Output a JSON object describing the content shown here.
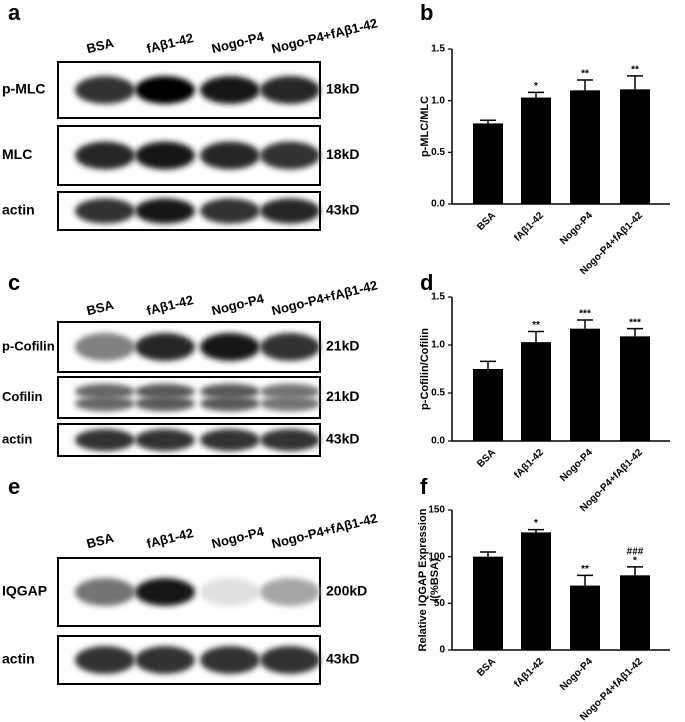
{
  "chart_data": [
    {
      "type": "bar",
      "panel": "b",
      "ylabel": [
        "p-MLC/MLC"
      ],
      "categories": [
        "BSA",
        "fAβ1-42",
        "Nogo-P4",
        "Nogo-P4+fAβ1-42"
      ],
      "values": [
        0.78,
        1.03,
        1.1,
        1.11
      ],
      "errors": [
        0.03,
        0.05,
        0.1,
        0.13
      ],
      "annotations": [
        null,
        [
          "*"
        ],
        [
          "**"
        ],
        [
          "**"
        ]
      ],
      "color": "#000000",
      "ylim": [
        0,
        1.5
      ],
      "yticks": [
        {
          "value": 0,
          "label": "0.0"
        },
        0.5,
        {
          "value": 1,
          "label": "1.0"
        },
        1.5
      ]
    },
    {
      "type": "bar",
      "panel": "d",
      "ylabel": [
        "p-Cofilin/Cofilin"
      ],
      "categories": [
        "BSA",
        "fAβ1-42",
        "Nogo-P4",
        "Nogo-P4+fAβ1-42"
      ],
      "values": [
        0.75,
        1.03,
        1.17,
        1.09
      ],
      "errors": [
        0.08,
        0.11,
        0.09,
        0.08
      ],
      "annotations": [
        null,
        [
          "**"
        ],
        [
          "***"
        ],
        [
          "***"
        ]
      ],
      "color": "#000000",
      "ylim": [
        0,
        1.5
      ],
      "yticks": [
        {
          "value": 0,
          "label": "0.0"
        },
        0.5,
        {
          "value": 1,
          "label": "1.0"
        },
        1.5
      ]
    },
    {
      "type": "bar",
      "panel": "f",
      "ylabel": [
        "Relative IQGAP Expression",
        "/(%BSA)"
      ],
      "categories": [
        "BSA",
        "fAβ1-42",
        "Nogo-P4",
        "Nogo-P4+fAβ1-42"
      ],
      "values": [
        100,
        126,
        69,
        80
      ],
      "errors": [
        5,
        3,
        11,
        9
      ],
      "annotations": [
        null,
        [
          "*"
        ],
        [
          "**"
        ],
        [
          "###",
          "*"
        ]
      ],
      "color": "#000000",
      "ylim": [
        0,
        150
      ],
      "yticks": [
        0,
        50,
        100,
        150
      ]
    }
  ],
  "blots": [
    {
      "panel": "a",
      "lanes": [
        "BSA",
        "fAβ1-42",
        "Nogo-P4",
        "Nogo-P4+fAβ1-42"
      ],
      "rows": [
        {
          "label": "p-MLC",
          "size": "18kD"
        },
        {
          "label": "MLC",
          "size": "18kD"
        },
        {
          "label": "actin",
          "size": "43kD"
        }
      ]
    },
    {
      "panel": "c",
      "lanes": [
        "BSA",
        "fAβ1-42",
        "Nogo-P4",
        "Nogo-P4+fAβ1-42"
      ],
      "rows": [
        {
          "label": "p-Cofilin",
          "size": "21kD"
        },
        {
          "label": "Cofilin",
          "size": "21kD"
        },
        {
          "label": "actin",
          "size": "43kD"
        }
      ]
    },
    {
      "panel": "e",
      "lanes": [
        "BSA",
        "fAβ1-42",
        "Nogo-P4",
        "Nogo-P4+fAβ1-42"
      ],
      "rows": [
        {
          "label": "IQGAP",
          "size": "200kD"
        },
        {
          "label": "actin",
          "size": "43kD"
        }
      ]
    }
  ]
}
